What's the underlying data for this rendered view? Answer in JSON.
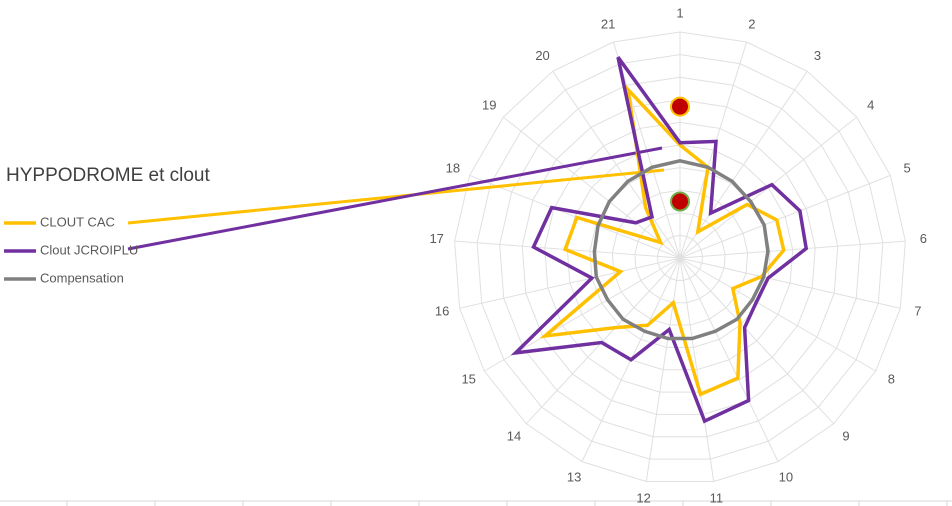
{
  "chart_data": {
    "type": "radar",
    "title": "HYPPODROME et clout",
    "categories": [
      "1",
      "2",
      "3",
      "4",
      "5",
      "6",
      "7",
      "8",
      "9",
      "10",
      "11",
      "12",
      "13",
      "14",
      "15",
      "16",
      "17",
      "18",
      "19",
      "20",
      "21"
    ],
    "rlim": [
      0,
      10
    ],
    "rticks": [
      1,
      2,
      3,
      4,
      5,
      6,
      7,
      8,
      9,
      10
    ],
    "grid": true,
    "series": [
      {
        "name": "CLOUT CAC",
        "color": "#ffc000",
        "values": [
          5.0,
          4.2,
          1.4,
          3.8,
          4.6,
          4.6,
          3.7,
          2.7,
          3.9,
          5.9,
          6.1,
          2.0,
          3.3,
          4.2,
          6.9,
          2.7,
          5.1,
          4.9,
          1.1,
          2.7,
          7.8
        ]
      },
      {
        "name": "Clout JCROIPLU",
        "color": "#7030a0",
        "values": [
          5.1,
          5.4,
          2.4,
          5.2,
          5.7,
          5.6,
          4.0,
          3.9,
          4.2,
          7.0,
          7.3,
          3.2,
          5.0,
          5.1,
          8.4,
          4.0,
          6.5,
          6.1,
          2.5,
          2.2,
          9.3
        ]
      },
      {
        "name": "Compensation",
        "color": "#808080",
        "values": [
          4.3,
          4.2,
          4.1,
          4.0,
          4.0,
          3.9,
          3.8,
          3.7,
          3.7,
          3.6,
          3.6,
          3.6,
          3.6,
          3.7,
          3.7,
          3.8,
          3.8,
          3.9,
          4.0,
          4.1,
          4.2
        ]
      }
    ],
    "markers": [
      {
        "value": 6.7,
        "color": "#c00000",
        "edge": "#ffc000"
      },
      {
        "value": 2.5,
        "color": "#c00000",
        "edge": "#70ad47"
      }
    ]
  }
}
